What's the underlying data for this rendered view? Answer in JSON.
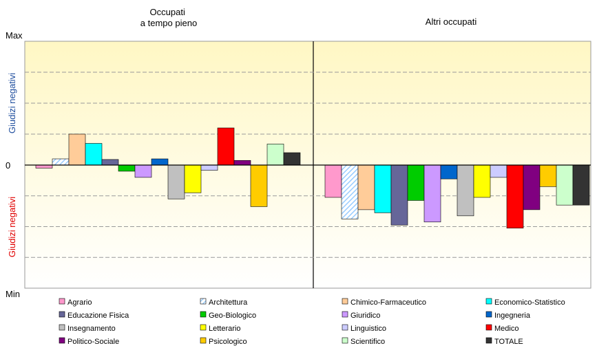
{
  "chart_data": {
    "type": "bar",
    "panel_titles": [
      "Occupati\na tempo pieno",
      "Altri occupati"
    ],
    "y_tick_labels": {
      "max": "Max",
      "zero": "0",
      "min": "Min"
    },
    "ylabel_positive": "Giudizi negativi",
    "ylabel_negative": "Giudizi negativi",
    "ylim": [
      -4,
      4
    ],
    "grid": true,
    "legend_position": "bottom",
    "categories": [
      "Agrario",
      "Architettura",
      "Chimico-Farmaceutico",
      "Economico-Statistico",
      "Educazione Fisica",
      "Geo-Biologico",
      "Giuridico",
      "Ingegneria",
      "Insegnamento",
      "Letterario",
      "Linguistico",
      "Medico",
      "Politico-Sociale",
      "Psicologico",
      "Scientifico",
      "TOTALE"
    ],
    "colors": [
      "#ff99cc",
      "#99ccff",
      "#ffcc99",
      "#00ffff",
      "#666699",
      "#00cc00",
      "#cc99ff",
      "#0066cc",
      "#c0c0c0",
      "#ffff00",
      "#ccccff",
      "#ff0000",
      "#800080",
      "#ffcc00",
      "#ccffcc",
      "#333333"
    ],
    "patterns": [
      "solid",
      "hatch",
      "solid",
      "solid",
      "solid",
      "solid",
      "solid",
      "solid",
      "solid",
      "solid",
      "solid",
      "solid",
      "solid",
      "solid",
      "solid",
      "solid"
    ],
    "series": [
      {
        "name": "Occupati\na tempo pieno",
        "values": [
          -0.1,
          0.2,
          1.0,
          0.7,
          0.18,
          -0.2,
          -0.4,
          0.2,
          -1.1,
          -0.9,
          -0.17,
          1.2,
          0.15,
          -1.35,
          0.68,
          0.4
        ]
      },
      {
        "name": "Altri occupati",
        "values": [
          -1.05,
          -1.75,
          -1.45,
          -1.55,
          -1.95,
          -1.15,
          -1.85,
          -0.45,
          -1.65,
          -1.05,
          -0.4,
          -2.05,
          -1.45,
          -0.7,
          -1.3,
          -1.3
        ]
      }
    ]
  }
}
